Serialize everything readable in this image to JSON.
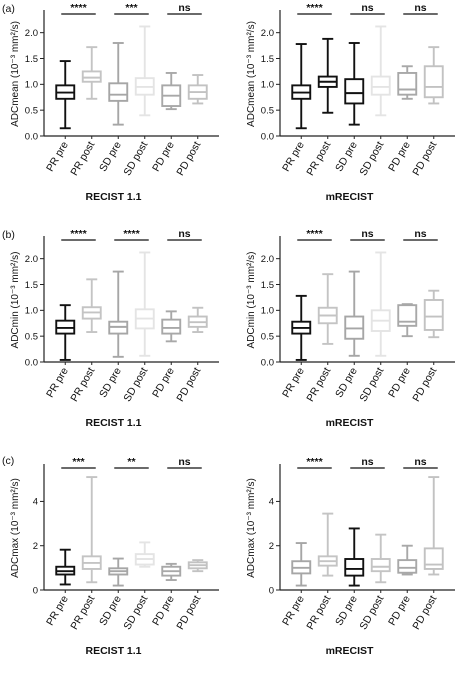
{
  "panel_labels": [
    "(a)",
    "(b)",
    "(c)"
  ],
  "colors": {
    "PR": "#111111",
    "PR_post": "#c4c4c4",
    "SD": "#a6a6a6",
    "SD_post": "#e4e4e4",
    "PD": "#a8a8a8",
    "PD_post": "#c2c2c2",
    "text": "#111111",
    "axis": "#222222"
  },
  "chart_data": [
    {
      "type": "boxplot",
      "panel": "(a)",
      "xlabel": "RECIST 1.1",
      "ylabel": "ADCmean (10⁻³ mm²/s)",
      "ylim": [
        0,
        2.4
      ],
      "yticks": [
        0.0,
        0.5,
        1.0,
        1.5,
        2.0
      ],
      "categories": [
        "PR pre",
        "PR post",
        "SD pre",
        "SD post",
        "PD pre",
        "PD post"
      ],
      "boxes": [
        {
          "min": 0.15,
          "q1": 0.72,
          "median": 0.84,
          "q3": 0.98,
          "max": 1.45,
          "color": "#111111"
        },
        {
          "min": 0.72,
          "q1": 1.05,
          "median": 1.13,
          "q3": 1.25,
          "max": 1.72,
          "color": "#c4c4c4"
        },
        {
          "min": 0.22,
          "q1": 0.68,
          "median": 0.8,
          "q3": 1.02,
          "max": 1.8,
          "color": "#a6a6a6"
        },
        {
          "min": 0.4,
          "q1": 0.8,
          "median": 0.95,
          "q3": 1.12,
          "max": 2.12,
          "color": "#e4e4e4"
        },
        {
          "min": 0.52,
          "q1": 0.58,
          "median": 0.78,
          "q3": 0.98,
          "max": 1.22,
          "color": "#a8a8a8"
        },
        {
          "min": 0.63,
          "q1": 0.72,
          "median": 0.85,
          "q3": 0.98,
          "max": 1.18,
          "color": "#c2c2c2"
        }
      ],
      "significance": [
        {
          "from": 0,
          "to": 1,
          "label": "****"
        },
        {
          "from": 2,
          "to": 3,
          "label": "***"
        },
        {
          "from": 4,
          "to": 5,
          "label": "ns"
        }
      ]
    },
    {
      "type": "boxplot",
      "panel": "",
      "xlabel": "mRECIST",
      "ylabel": "ADCmean (10⁻³ mm²/s)",
      "ylim": [
        0,
        2.4
      ],
      "yticks": [
        0.0,
        0.5,
        1.0,
        1.5,
        2.0
      ],
      "categories": [
        "PR pre",
        "PR post",
        "SD pre",
        "SD post",
        "PD pre",
        "PD post"
      ],
      "boxes": [
        {
          "min": 0.15,
          "q1": 0.72,
          "median": 0.84,
          "q3": 0.98,
          "max": 1.78,
          "color": "#111111"
        },
        {
          "min": 0.45,
          "q1": 0.95,
          "median": 1.05,
          "q3": 1.15,
          "max": 1.88,
          "color": "#111111"
        },
        {
          "min": 0.22,
          "q1": 0.63,
          "median": 0.83,
          "q3": 1.1,
          "max": 1.8,
          "color": "#111111"
        },
        {
          "min": 0.4,
          "q1": 0.8,
          "median": 0.95,
          "q3": 1.15,
          "max": 2.12,
          "color": "#e4e4e4"
        },
        {
          "min": 0.72,
          "q1": 0.8,
          "median": 0.9,
          "q3": 1.22,
          "max": 1.35,
          "color": "#a8a8a8"
        },
        {
          "min": 0.63,
          "q1": 0.75,
          "median": 0.95,
          "q3": 1.35,
          "max": 1.72,
          "color": "#c2c2c2"
        }
      ],
      "significance": [
        {
          "from": 0,
          "to": 1,
          "label": "****"
        },
        {
          "from": 2,
          "to": 3,
          "label": "ns"
        },
        {
          "from": 4,
          "to": 5,
          "label": "ns"
        }
      ]
    },
    {
      "type": "boxplot",
      "panel": "(b)",
      "xlabel": "RECIST 1.1",
      "ylabel": "ADCmin (10⁻³ mm²/s)",
      "ylim": [
        0,
        2.4
      ],
      "yticks": [
        0.0,
        0.5,
        1.0,
        1.5,
        2.0
      ],
      "categories": [
        "PR pre",
        "PR post",
        "SD pre",
        "SD post",
        "PD pre",
        "PD post"
      ],
      "boxes": [
        {
          "min": 0.04,
          "q1": 0.55,
          "median": 0.66,
          "q3": 0.8,
          "max": 1.1,
          "color": "#111111"
        },
        {
          "min": 0.58,
          "q1": 0.84,
          "median": 0.96,
          "q3": 1.06,
          "max": 1.6,
          "color": "#c4c4c4"
        },
        {
          "min": 0.1,
          "q1": 0.55,
          "median": 0.68,
          "q3": 0.78,
          "max": 1.75,
          "color": "#a6a6a6"
        },
        {
          "min": 0.12,
          "q1": 0.65,
          "median": 0.84,
          "q3": 1.02,
          "max": 2.12,
          "color": "#e4e4e4"
        },
        {
          "min": 0.4,
          "q1": 0.55,
          "median": 0.66,
          "q3": 0.82,
          "max": 0.98,
          "color": "#a8a8a8"
        },
        {
          "min": 0.58,
          "q1": 0.68,
          "median": 0.77,
          "q3": 0.88,
          "max": 1.05,
          "color": "#c2c2c2"
        }
      ],
      "significance": [
        {
          "from": 0,
          "to": 1,
          "label": "****"
        },
        {
          "from": 2,
          "to": 3,
          "label": "****"
        },
        {
          "from": 4,
          "to": 5,
          "label": "ns"
        }
      ]
    },
    {
      "type": "boxplot",
      "panel": "",
      "xlabel": "mRECIST",
      "ylabel": "ADCmin (10⁻³ mm²/s)",
      "ylim": [
        0,
        2.4
      ],
      "yticks": [
        0.0,
        0.5,
        1.0,
        1.5,
        2.0
      ],
      "categories": [
        "PR pre",
        "PR post",
        "SD pre",
        "SD post",
        "PD pre",
        "PD post"
      ],
      "boxes": [
        {
          "min": 0.04,
          "q1": 0.55,
          "median": 0.66,
          "q3": 0.78,
          "max": 1.28,
          "color": "#111111"
        },
        {
          "min": 0.35,
          "q1": 0.75,
          "median": 0.9,
          "q3": 1.05,
          "max": 1.7,
          "color": "#c4c4c4"
        },
        {
          "min": 0.12,
          "q1": 0.45,
          "median": 0.65,
          "q3": 0.88,
          "max": 1.75,
          "color": "#a6a6a6"
        },
        {
          "min": 0.12,
          "q1": 0.6,
          "median": 0.8,
          "q3": 1.0,
          "max": 2.12,
          "color": "#e4e4e4"
        },
        {
          "min": 0.5,
          "q1": 0.7,
          "median": 0.78,
          "q3": 1.1,
          "max": 1.12,
          "color": "#a8a8a8"
        },
        {
          "min": 0.48,
          "q1": 0.62,
          "median": 0.88,
          "q3": 1.2,
          "max": 1.38,
          "color": "#c2c2c2"
        }
      ],
      "significance": [
        {
          "from": 0,
          "to": 1,
          "label": "****"
        },
        {
          "from": 2,
          "to": 3,
          "label": "ns"
        },
        {
          "from": 4,
          "to": 5,
          "label": "ns"
        }
      ]
    },
    {
      "type": "boxplot",
      "panel": "(c)",
      "xlabel": "RECIST 1.1",
      "ylabel": "ADCmax (10⁻³ mm²/s)",
      "ylim": [
        0,
        5.6
      ],
      "yticks": [
        0,
        2,
        4
      ],
      "categories": [
        "PR pre",
        "PR post",
        "SD pre",
        "SD post",
        "PD pre",
        "PD post"
      ],
      "boxes": [
        {
          "min": 0.25,
          "q1": 0.7,
          "median": 0.85,
          "q3": 1.05,
          "max": 1.82,
          "color": "#111111"
        },
        {
          "min": 0.35,
          "q1": 0.95,
          "median": 1.22,
          "q3": 1.52,
          "max": 5.1,
          "color": "#c4c4c4"
        },
        {
          "min": 0.2,
          "q1": 0.7,
          "median": 0.85,
          "q3": 0.98,
          "max": 1.42,
          "color": "#a6a6a6"
        },
        {
          "min": 1.05,
          "q1": 1.15,
          "median": 1.4,
          "q3": 1.62,
          "max": 2.15,
          "color": "#e4e4e4"
        },
        {
          "min": 0.45,
          "q1": 0.65,
          "median": 0.85,
          "q3": 1.05,
          "max": 1.18,
          "color": "#a8a8a8"
        },
        {
          "min": 0.85,
          "q1": 0.98,
          "median": 1.12,
          "q3": 1.25,
          "max": 1.35,
          "color": "#c2c2c2"
        }
      ],
      "significance": [
        {
          "from": 0,
          "to": 1,
          "label": "***"
        },
        {
          "from": 2,
          "to": 3,
          "label": "**"
        },
        {
          "from": 4,
          "to": 5,
          "label": "ns"
        }
      ]
    },
    {
      "type": "boxplot",
      "panel": "",
      "xlabel": "mRECIST",
      "ylabel": "ADCmax (10⁻³ mm²/s)",
      "ylim": [
        0,
        5.6
      ],
      "yticks": [
        0,
        2,
        4
      ],
      "categories": [
        "PR pre",
        "PR post",
        "SD pre",
        "SD post",
        "PD pre",
        "PD post"
      ],
      "boxes": [
        {
          "min": 0.2,
          "q1": 0.75,
          "median": 1.0,
          "q3": 1.3,
          "max": 2.12,
          "color": "#a6a6a6"
        },
        {
          "min": 0.65,
          "q1": 1.1,
          "median": 1.3,
          "q3": 1.52,
          "max": 3.45,
          "color": "#c4c4c4"
        },
        {
          "min": 0.2,
          "q1": 0.65,
          "median": 0.95,
          "q3": 1.4,
          "max": 2.78,
          "color": "#111111"
        },
        {
          "min": 0.35,
          "q1": 0.85,
          "median": 1.05,
          "q3": 1.4,
          "max": 2.5,
          "color": "#c4c4c4"
        },
        {
          "min": 0.7,
          "q1": 0.78,
          "median": 1.0,
          "q3": 1.35,
          "max": 2.0,
          "color": "#a8a8a8"
        },
        {
          "min": 0.7,
          "q1": 0.95,
          "median": 1.15,
          "q3": 1.88,
          "max": 5.1,
          "color": "#c2c2c2"
        }
      ],
      "significance": [
        {
          "from": 0,
          "to": 1,
          "label": "****"
        },
        {
          "from": 2,
          "to": 3,
          "label": "ns"
        },
        {
          "from": 4,
          "to": 5,
          "label": "ns"
        }
      ]
    }
  ]
}
